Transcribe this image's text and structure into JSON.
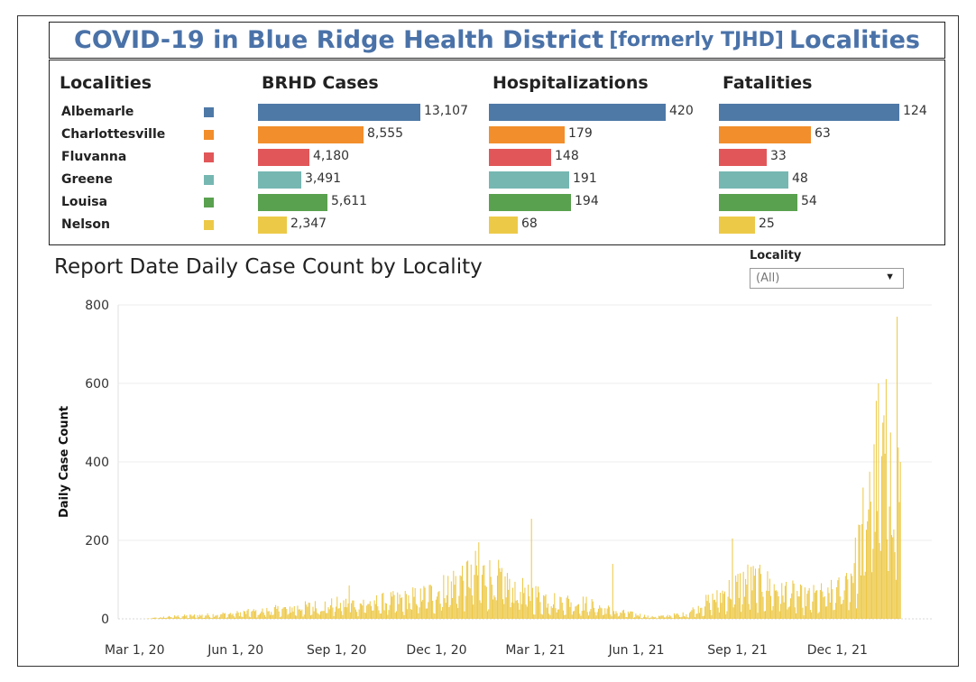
{
  "title": {
    "part1": "COVID-19 in Blue Ridge Health District",
    "part2": "[formerly TJHD]",
    "part3": "Localities"
  },
  "summary": {
    "headers": {
      "localities": "Localities",
      "cases": "BRHD Cases",
      "hospitalizations": "Hospitalizations",
      "fatalities": "Fatalities"
    },
    "rows": [
      {
        "locality": "Albemarle",
        "color": "#4e79a7",
        "cases": 13107,
        "cases_label": "13,107",
        "hosp": 420,
        "hosp_label": "420",
        "fatal": 124,
        "fatal_label": "124"
      },
      {
        "locality": "Charlottesville",
        "color": "#f28e2b",
        "cases": 8555,
        "cases_label": "8,555",
        "hosp": 179,
        "hosp_label": "179",
        "fatal": 63,
        "fatal_label": "63"
      },
      {
        "locality": "Fluvanna",
        "color": "#e15759",
        "cases": 4180,
        "cases_label": "4,180",
        "hosp": 148,
        "hosp_label": "148",
        "fatal": 33,
        "fatal_label": "33"
      },
      {
        "locality": "Greene",
        "color": "#76b7b2",
        "cases": 3491,
        "cases_label": "3,491",
        "hosp": 191,
        "hosp_label": "191",
        "fatal": 48,
        "fatal_label": "48"
      },
      {
        "locality": "Louisa",
        "color": "#59a14f",
        "cases": 5611,
        "cases_label": "5,611",
        "hosp": 194,
        "hosp_label": "194",
        "fatal": 54,
        "fatal_label": "54"
      },
      {
        "locality": "Nelson",
        "color": "#edc948",
        "cases": 2347,
        "cases_label": "2,347",
        "hosp": 68,
        "hosp_label": "68",
        "fatal": 25,
        "fatal_label": "25"
      }
    ]
  },
  "filter": {
    "label": "Locality",
    "value": "(All)"
  },
  "chart_data": {
    "type": "bar",
    "title": "Report Date Daily Case Count by Locality",
    "ylabel": "Daily Case Count",
    "xlabel": "",
    "ylim": [
      0,
      800
    ],
    "yticks": [
      0,
      200,
      400,
      600,
      800
    ],
    "xlim": [
      "2020-02-15",
      "2022-02-25"
    ],
    "xticks": [
      {
        "date": "2020-03-01",
        "label": "Mar 1, 20"
      },
      {
        "date": "2020-06-01",
        "label": "Jun 1, 20"
      },
      {
        "date": "2020-09-01",
        "label": "Sep 1, 20"
      },
      {
        "date": "2020-12-01",
        "label": "Dec 1, 20"
      },
      {
        "date": "2021-03-01",
        "label": "Mar 1, 21"
      },
      {
        "date": "2021-06-01",
        "label": "Jun 1, 21"
      },
      {
        "date": "2021-09-01",
        "label": "Sep 1, 21"
      },
      {
        "date": "2021-12-01",
        "label": "Dec 1, 21"
      }
    ],
    "bar_color": "#edc948",
    "grid": true,
    "series_trend": [
      {
        "date": "2020-03-10",
        "value": 0
      },
      {
        "date": "2020-04-01",
        "value": 6
      },
      {
        "date": "2020-05-01",
        "value": 9
      },
      {
        "date": "2020-06-01",
        "value": 14
      },
      {
        "date": "2020-07-01",
        "value": 22
      },
      {
        "date": "2020-08-01",
        "value": 30
      },
      {
        "date": "2020-09-01",
        "value": 38
      },
      {
        "date": "2020-10-01",
        "value": 42
      },
      {
        "date": "2020-11-01",
        "value": 50
      },
      {
        "date": "2020-12-01",
        "value": 70
      },
      {
        "date": "2021-01-01",
        "value": 120
      },
      {
        "date": "2021-01-20",
        "value": 110
      },
      {
        "date": "2021-02-15",
        "value": 75
      },
      {
        "date": "2021-03-15",
        "value": 50
      },
      {
        "date": "2021-04-15",
        "value": 40
      },
      {
        "date": "2021-05-15",
        "value": 18
      },
      {
        "date": "2021-06-15",
        "value": 5
      },
      {
        "date": "2021-07-15",
        "value": 12
      },
      {
        "date": "2021-08-15",
        "value": 60
      },
      {
        "date": "2021-09-10",
        "value": 100
      },
      {
        "date": "2021-10-01",
        "value": 85
      },
      {
        "date": "2021-11-01",
        "value": 55
      },
      {
        "date": "2021-12-01",
        "value": 70
      },
      {
        "date": "2021-12-20",
        "value": 160
      },
      {
        "date": "2022-01-01",
        "value": 380
      },
      {
        "date": "2022-01-15",
        "value": 420
      },
      {
        "date": "2022-01-27",
        "value": 350
      }
    ],
    "peaks": [
      {
        "date": "2020-09-12",
        "value": 85
      },
      {
        "date": "2021-01-08",
        "value": 195
      },
      {
        "date": "2021-02-25",
        "value": 255
      },
      {
        "date": "2021-05-10",
        "value": 140
      },
      {
        "date": "2021-08-27",
        "value": 205
      },
      {
        "date": "2021-12-20",
        "value": 240
      },
      {
        "date": "2021-12-30",
        "value": 375
      },
      {
        "date": "2022-01-03",
        "value": 445
      },
      {
        "date": "2022-01-07",
        "value": 600
      },
      {
        "date": "2022-01-11",
        "value": 500
      },
      {
        "date": "2022-01-18",
        "value": 475
      },
      {
        "date": "2022-01-24",
        "value": 770
      }
    ]
  }
}
